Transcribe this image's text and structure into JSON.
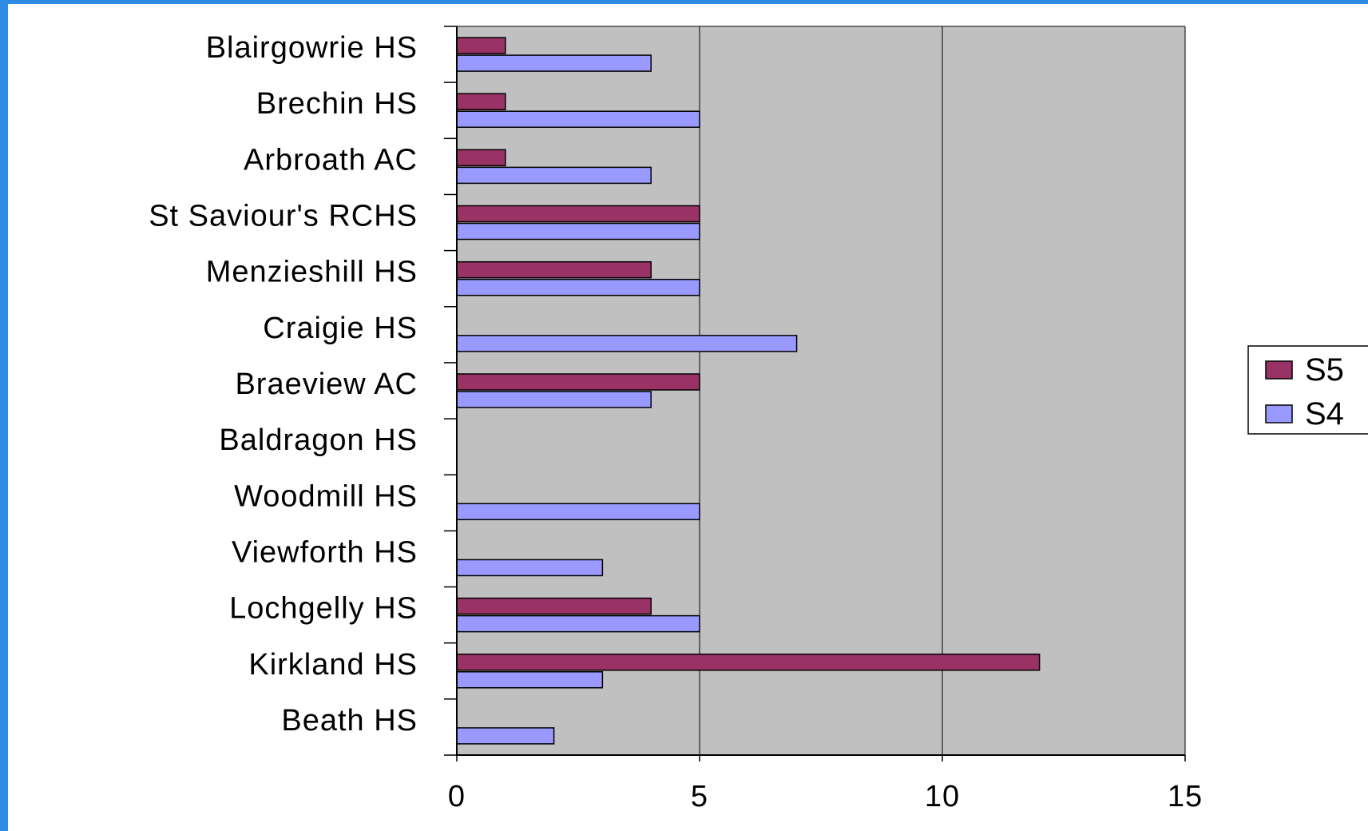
{
  "chart_data": {
    "type": "bar",
    "orientation": "horizontal",
    "categories": [
      "Blairgowrie HS",
      "Brechin HS",
      "Arbroath AC",
      "St Saviour's RCHS",
      "Menzieshill HS",
      "Craigie HS",
      "Braeview AC",
      "Baldragon HS",
      "Woodmill HS",
      "Viewforth HS",
      "Lochgelly HS",
      "Kirkland HS",
      "Beath HS"
    ],
    "series": [
      {
        "name": "S5",
        "color": "#993366",
        "values": [
          1,
          1,
          1,
          5,
          4,
          0,
          5,
          0,
          0,
          0,
          4,
          12,
          0
        ]
      },
      {
        "name": "S4",
        "color": "#9999ff",
        "values": [
          4,
          5,
          4,
          5,
          5,
          7,
          4,
          0,
          5,
          3,
          5,
          3,
          2
        ]
      }
    ],
    "xlim": [
      0,
      15
    ],
    "xticks": [
      "0",
      "5",
      "10",
      "15"
    ],
    "grid": true,
    "plot_background": "#c0c0c0",
    "legend": {
      "position": "right",
      "entries": [
        "S5",
        "S4"
      ]
    }
  }
}
